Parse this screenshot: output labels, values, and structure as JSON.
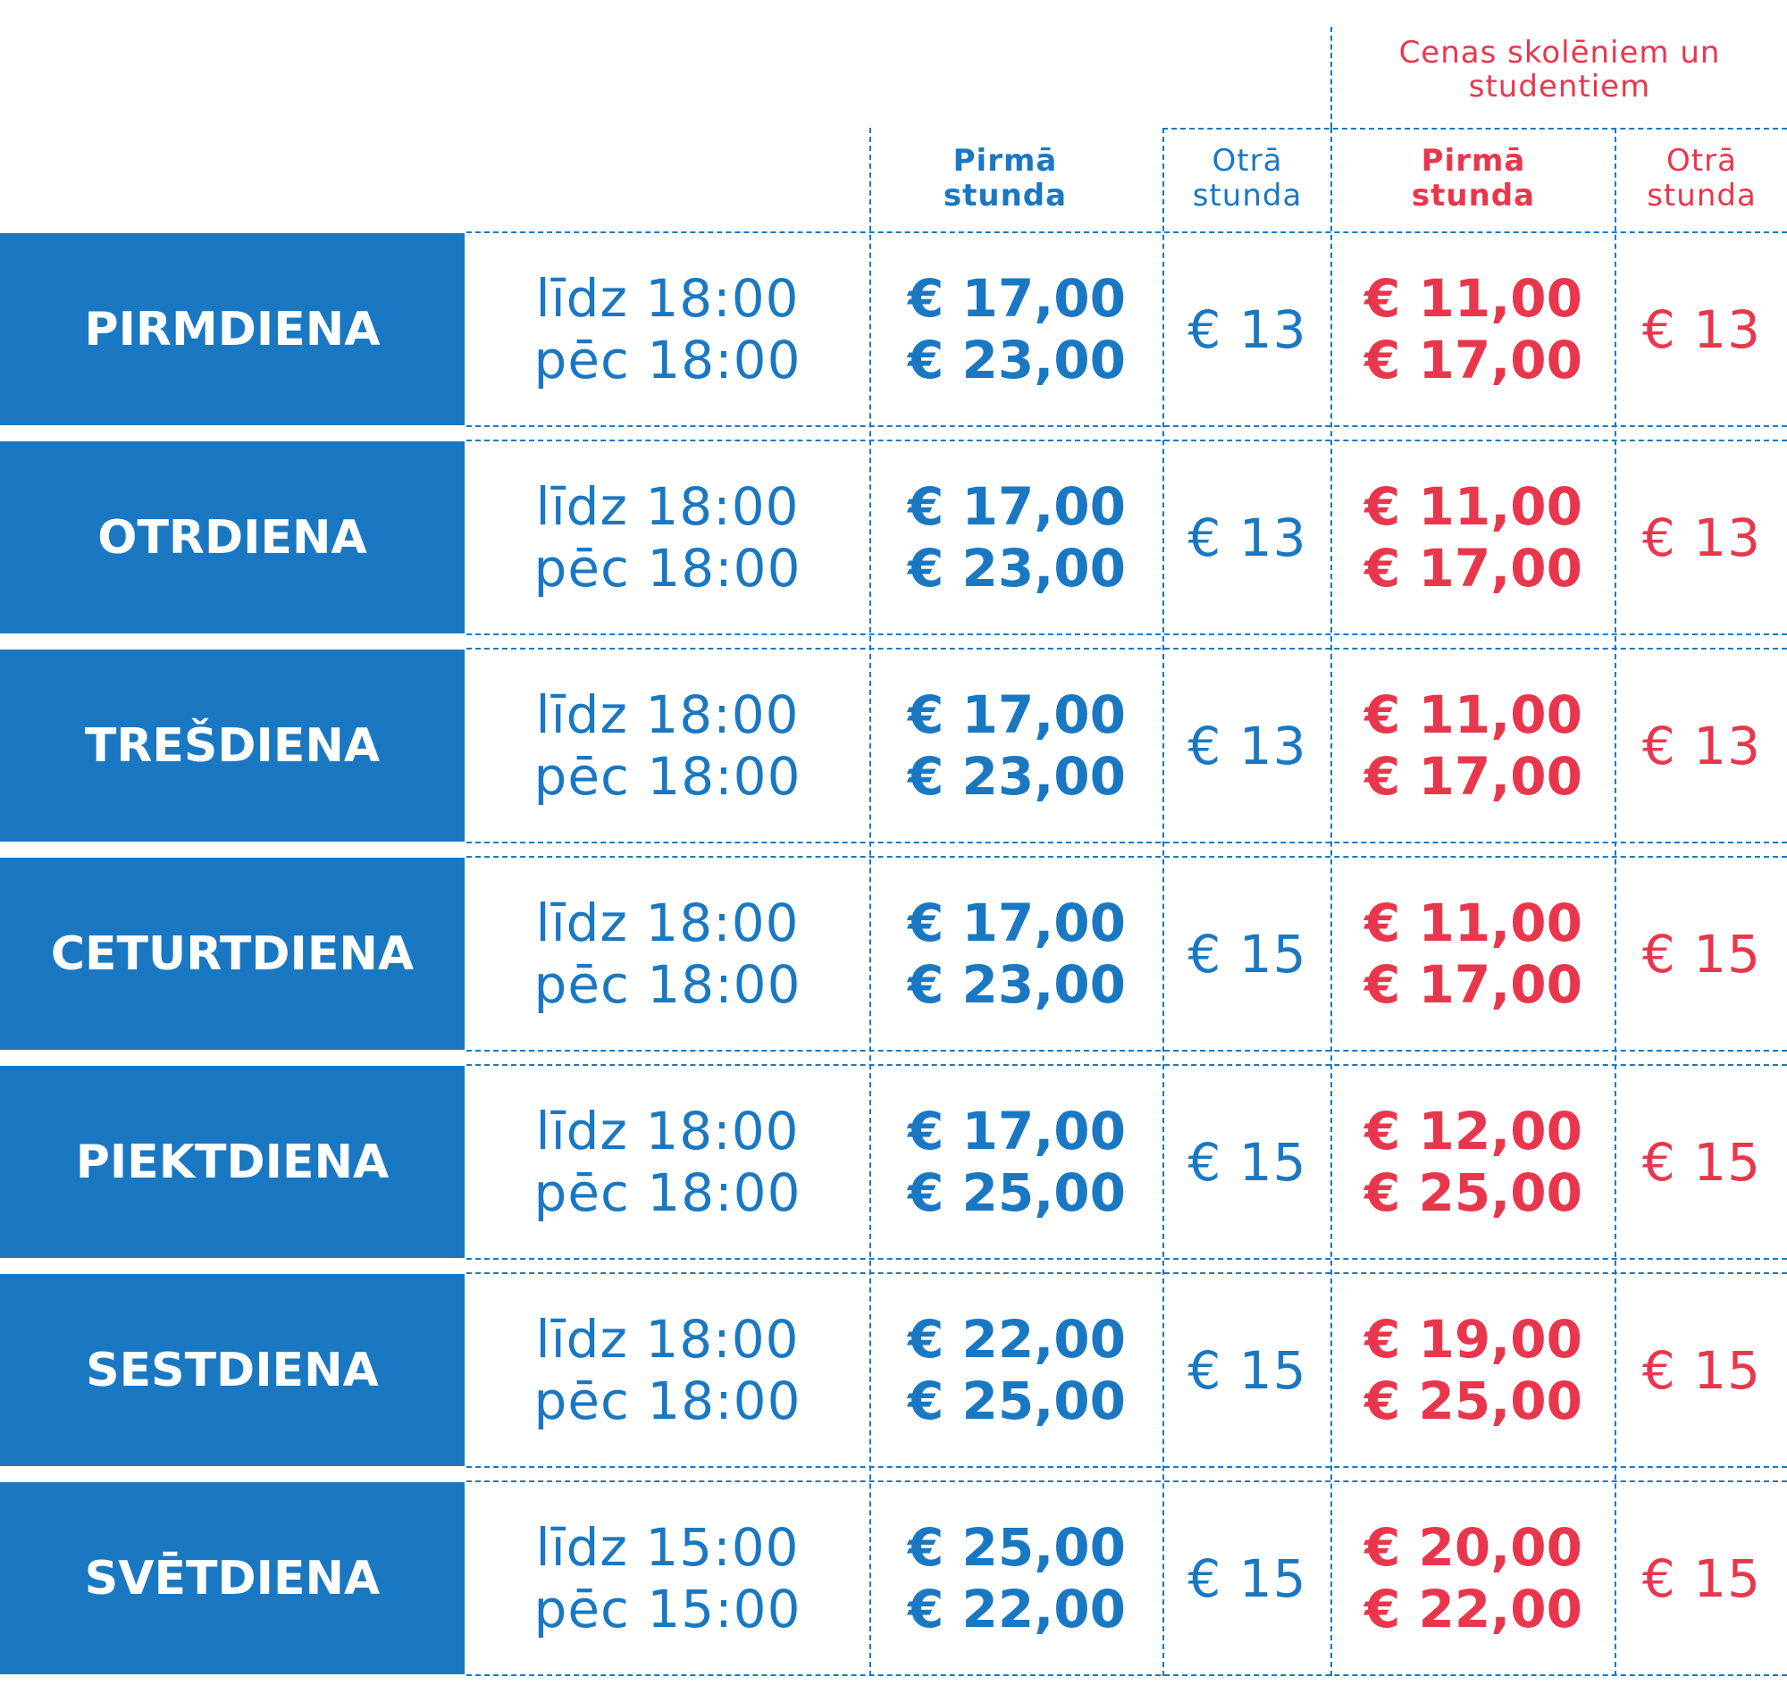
{
  "header": {
    "student_caption": "Cenas skolēniem un studentiem",
    "columns": [
      {
        "line1": "Pirmā",
        "line2": "stunda"
      },
      {
        "line1": "Otrā",
        "line2": "stunda"
      },
      {
        "line1": "Pirmā",
        "line2": "stunda"
      },
      {
        "line1": "Otrā",
        "line2": "stunda"
      }
    ]
  },
  "rows": [
    {
      "day": "PIRMDIENA",
      "time1": "līdz 18:00",
      "time2": "pēc 18:00",
      "first1": "€ 17,00",
      "first2": "€ 23,00",
      "second": "€ 13",
      "s_first1": "€ 11,00",
      "s_first2": "€ 17,00",
      "s_second": "€ 13"
    },
    {
      "day": "OTRDIENA",
      "time1": "līdz 18:00",
      "time2": "pēc 18:00",
      "first1": "€ 17,00",
      "first2": "€ 23,00",
      "second": "€ 13",
      "s_first1": "€ 11,00",
      "s_first2": "€ 17,00",
      "s_second": "€ 13"
    },
    {
      "day": "TREŠDIENA",
      "time1": "līdz 18:00",
      "time2": "pēc 18:00",
      "first1": "€ 17,00",
      "first2": "€ 23,00",
      "second": "€ 13",
      "s_first1": "€ 11,00",
      "s_first2": "€ 17,00",
      "s_second": "€ 13"
    },
    {
      "day": "CETURTDIENA",
      "time1": "līdz 18:00",
      "time2": "pēc 18:00",
      "first1": "€ 17,00",
      "first2": "€ 23,00",
      "second": "€ 15",
      "s_first1": "€ 11,00",
      "s_first2": "€ 17,00",
      "s_second": "€ 15"
    },
    {
      "day": "PIEKTDIENA",
      "time1": "līdz 18:00",
      "time2": "pēc 18:00",
      "first1": "€ 17,00",
      "first2": "€ 25,00",
      "second": "€ 15",
      "s_first1": "€ 12,00",
      "s_first2": "€ 25,00",
      "s_second": "€ 15"
    },
    {
      "day": "SESTDIENA",
      "time1": "līdz 18:00",
      "time2": "pēc 18:00",
      "first1": "€ 22,00",
      "first2": "€ 25,00",
      "second": "€ 15",
      "s_first1": "€ 19,00",
      "s_first2": "€ 25,00",
      "s_second": "€ 15"
    },
    {
      "day": "SVĒTDIENA",
      "time1": "līdz 15:00",
      "time2": "pēc 15:00",
      "first1": "€ 25,00",
      "first2": "€ 22,00",
      "second": "€ 15",
      "s_first1": "€ 20,00",
      "s_first2": "€ 22,00",
      "s_second": "€ 15"
    }
  ],
  "colors": {
    "primary_blue": "#1a78c2",
    "student_red": "#e8374d"
  }
}
